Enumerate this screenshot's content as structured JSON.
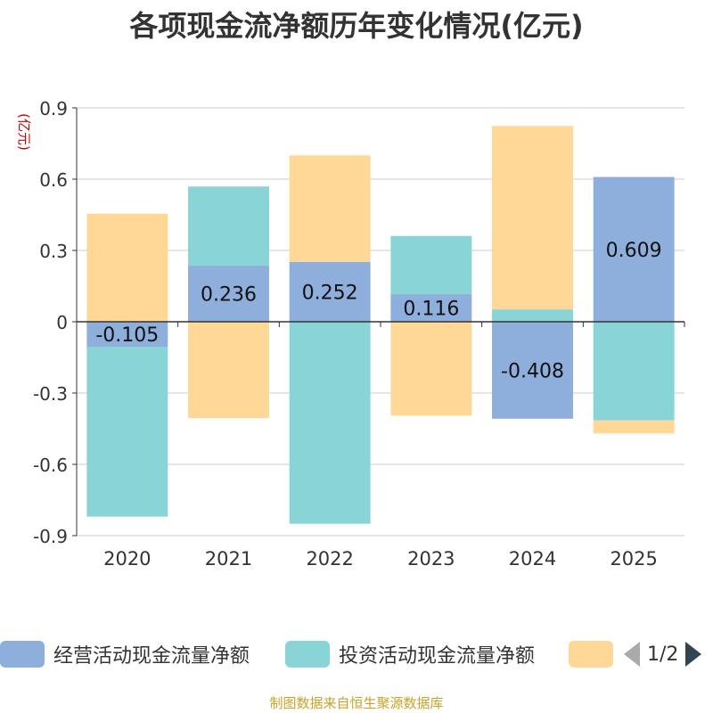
{
  "title": "各项现金流净额历年变化情况(亿元)",
  "source": "制图数据来自恒生聚源数据库",
  "legend": {
    "items": [
      {
        "label": "经营活动现金流量净额",
        "color": "#8eaedb"
      },
      {
        "label": "投资活动现金流量净额",
        "color": "#88d4d6"
      },
      {
        "label": "",
        "color": "#ffd898"
      }
    ],
    "pager": "1/2"
  },
  "chart_data": {
    "type": "bar",
    "stacked": true,
    "ylabel": "(亿元)",
    "ylim": [
      -0.9,
      0.9
    ],
    "yticks": [
      -0.9,
      -0.6,
      -0.3,
      0,
      0.3,
      0.6,
      0.9
    ],
    "ytick_labels": [
      "-0.9",
      "-0.6",
      "-0.3",
      "0",
      "0.3",
      "0.6",
      "0.9"
    ],
    "categories": [
      "2020",
      "2021",
      "2022",
      "2023",
      "2024",
      "2025"
    ],
    "grid": true,
    "series": [
      {
        "name": "经营活动现金流量净额",
        "color": "#8eaedb",
        "values": [
          -0.105,
          0.236,
          0.252,
          0.116,
          -0.408,
          0.609
        ],
        "labels": [
          "-0.105",
          "0.236",
          "0.252",
          "0.116",
          "-0.408",
          "0.609"
        ]
      },
      {
        "name": "投资活动现金流量净额",
        "color": "#88d4d6",
        "values": [
          -0.715,
          0.333,
          -0.85,
          0.245,
          0.052,
          -0.415
        ]
      },
      {
        "name": "",
        "color": "#ffd898",
        "values": [
          0.455,
          -0.405,
          0.448,
          -0.395,
          0.772,
          -0.055
        ]
      }
    ]
  }
}
